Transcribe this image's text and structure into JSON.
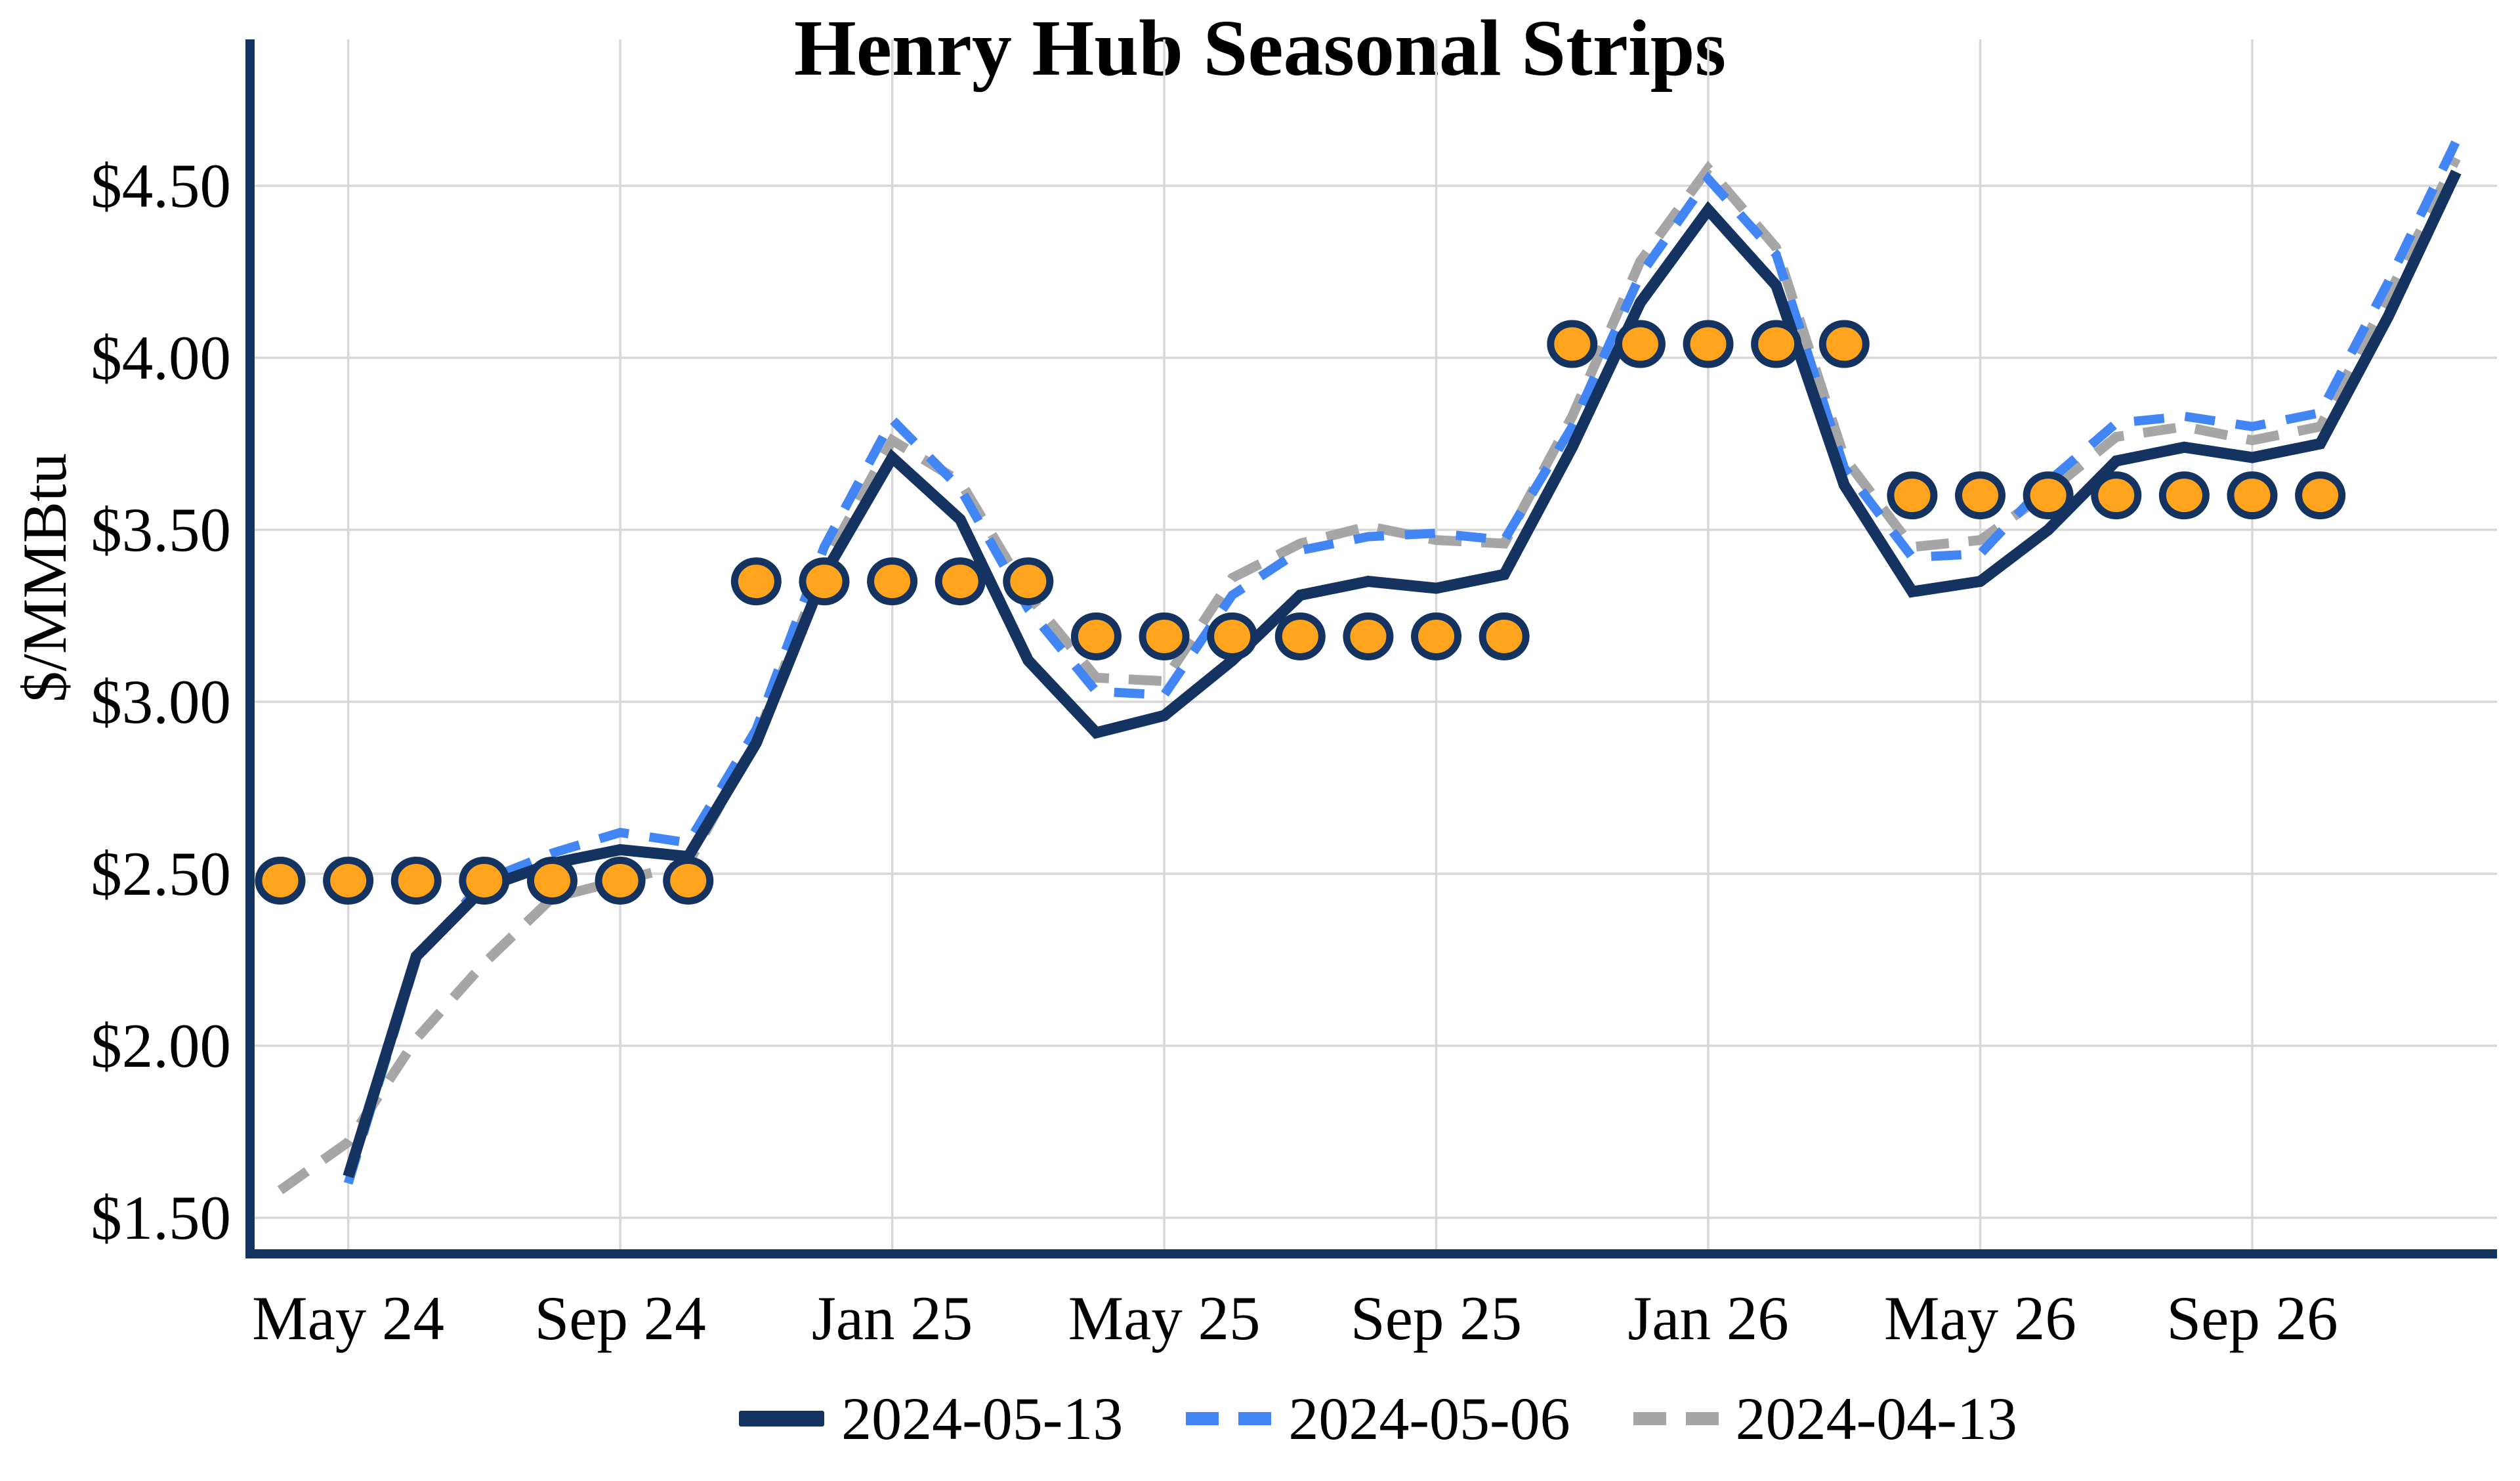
{
  "title": "Henry Hub Seasonal Strips",
  "y_axis": {
    "label": "$/MMBtu",
    "tick_labels": [
      "$1.50",
      "$2.00",
      "$2.50",
      "$3.00",
      "$3.50",
      "$4.00",
      "$4.50"
    ],
    "tick_values": [
      1.5,
      2.0,
      2.5,
      3.0,
      3.5,
      4.0,
      4.5
    ]
  },
  "x_axis": {
    "tick_labels": [
      "May 24",
      "Sep 24",
      "Jan 25",
      "May 25",
      "Sep 25",
      "Jan 26",
      "May 26",
      "Sep 26"
    ],
    "tick_month_indices": [
      1,
      5,
      9,
      13,
      17,
      21,
      25,
      29
    ]
  },
  "legend": {
    "items": [
      {
        "label": "2024-05-13",
        "style": "solid"
      },
      {
        "label": "2024-05-06",
        "style": "dashed"
      },
      {
        "label": "2024-04-13",
        "style": "dashed"
      }
    ]
  },
  "chart_data": {
    "type": "line",
    "title": "Henry Hub Seasonal Strips",
    "ylabel": "$/MMBtu",
    "xlabel": "",
    "ylim": [
      1.39,
      4.93
    ],
    "grid": true,
    "legend_position": "bottom",
    "months": [
      "2024-04",
      "2024-05",
      "2024-06",
      "2024-07",
      "2024-08",
      "2024-09",
      "2024-10",
      "2024-11",
      "2024-12",
      "2025-01",
      "2025-02",
      "2025-03",
      "2025-04",
      "2025-05",
      "2025-06",
      "2025-07",
      "2025-08",
      "2025-09",
      "2025-10",
      "2025-11",
      "2025-12",
      "2026-01",
      "2026-02",
      "2026-03",
      "2026-04",
      "2026-05",
      "2026-06",
      "2026-07",
      "2026-08",
      "2026-09",
      "2026-10",
      "2026-11",
      "2026-12"
    ],
    "series": [
      {
        "name": "2024-05-13",
        "color": "#143360",
        "line_style": "solid",
        "line_width": 17,
        "values": [
          null,
          1.62,
          2.26,
          2.46,
          2.53,
          2.57,
          2.55,
          2.88,
          3.37,
          3.71,
          3.53,
          3.12,
          2.91,
          2.96,
          3.12,
          3.31,
          3.35,
          3.33,
          3.37,
          3.74,
          4.16,
          4.43,
          4.21,
          3.63,
          3.32,
          3.35,
          3.5,
          3.7,
          3.74,
          3.71,
          3.75,
          4.12,
          4.54
        ]
      },
      {
        "name": "2024-05-06",
        "color": "#4285F4",
        "line_style": "dashed",
        "line_width": 14,
        "values": [
          null,
          1.6,
          2.25,
          2.48,
          2.56,
          2.62,
          2.59,
          2.92,
          3.45,
          3.82,
          3.62,
          3.27,
          3.03,
          3.02,
          3.31,
          3.44,
          3.48,
          3.49,
          3.47,
          3.8,
          4.24,
          4.52,
          4.3,
          3.68,
          3.42,
          3.43,
          3.64,
          3.81,
          3.83,
          3.8,
          3.84,
          4.22,
          4.63
        ]
      },
      {
        "name": "2024-04-13",
        "color": "#A6A6A6",
        "line_style": "dashed",
        "line_width": 15,
        "values": [
          1.58,
          1.72,
          2.02,
          2.24,
          2.43,
          2.48,
          2.53,
          2.89,
          3.4,
          3.76,
          3.64,
          3.31,
          3.07,
          3.06,
          3.36,
          3.46,
          3.51,
          3.47,
          3.46,
          3.83,
          4.28,
          4.55,
          4.32,
          3.71,
          3.45,
          3.47,
          3.61,
          3.77,
          3.8,
          3.76,
          3.8,
          4.18,
          4.58
        ]
      }
    ],
    "seasonal_strips": [
      {
        "start": "2024-04",
        "end": "2024-10",
        "value": 2.48
      },
      {
        "start": "2024-11",
        "end": "2025-03",
        "value": 3.35
      },
      {
        "start": "2025-04",
        "end": "2025-10",
        "value": 3.19
      },
      {
        "start": "2025-11",
        "end": "2026-03",
        "value": 4.04
      },
      {
        "start": "2026-04",
        "end": "2026-10",
        "value": 3.6
      }
    ],
    "marker_style": {
      "fill": "#FFA41C",
      "border": "#143360",
      "shape": "circle"
    },
    "style": {
      "gridline_color": "#D8D8D8",
      "axis_color": "#143360",
      "background": "#FFFFFF",
      "text_color": "#000000"
    }
  }
}
